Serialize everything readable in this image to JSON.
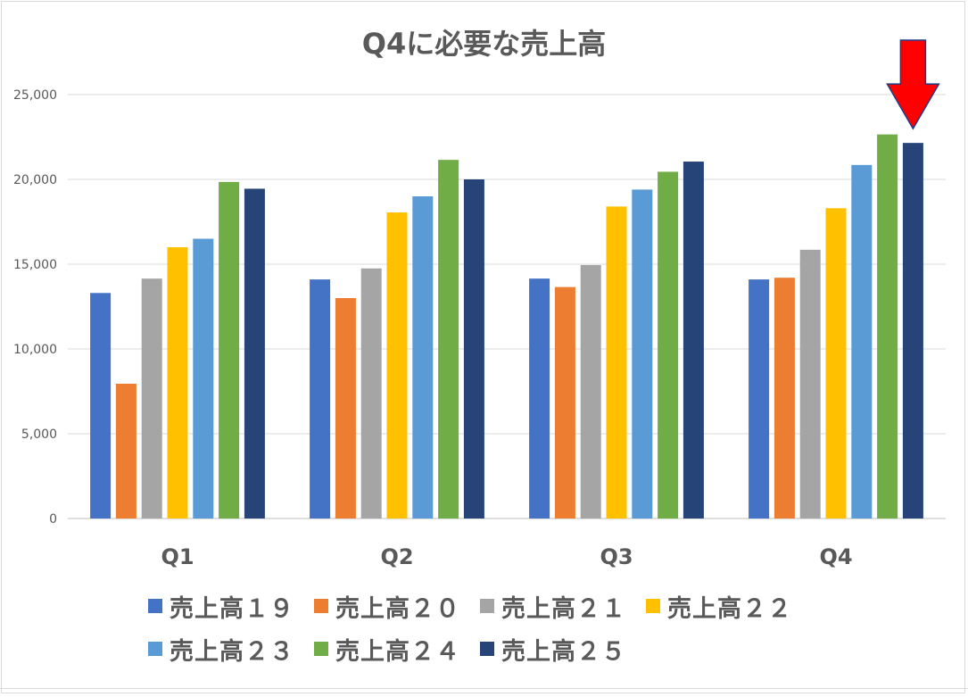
{
  "chart_data": {
    "type": "bar",
    "title": "Q4に必要な売上高",
    "categories": [
      "Q1",
      "Q2",
      "Q3",
      "Q4"
    ],
    "ylim": [
      0,
      25000
    ],
    "yticks": [
      "0",
      "5,000",
      "10,000",
      "15,000",
      "20,000",
      "25,000"
    ],
    "ytick_values": [
      0,
      5000,
      10000,
      15000,
      20000,
      25000
    ],
    "grid": true,
    "legend_position": "bottom",
    "series": [
      {
        "name": "売上高１９",
        "color": "#4472c4",
        "values": [
          13300,
          14100,
          14150,
          14100
        ]
      },
      {
        "name": "売上高２０",
        "color": "#ed7d31",
        "values": [
          7950,
          13000,
          13650,
          14200
        ]
      },
      {
        "name": "売上高２１",
        "color": "#a5a5a5",
        "values": [
          14150,
          14750,
          14950,
          15850
        ]
      },
      {
        "name": "売上高２２",
        "color": "#ffc000",
        "values": [
          16000,
          18050,
          18400,
          18300
        ]
      },
      {
        "name": "売上高２３",
        "color": "#5b9bd5",
        "values": [
          16500,
          19000,
          19400,
          20850
        ]
      },
      {
        "name": "売上高２４",
        "color": "#70ad47",
        "values": [
          19850,
          21150,
          20450,
          22650
        ]
      },
      {
        "name": "売上高２５",
        "color": "#264478",
        "values": [
          19450,
          20000,
          21050,
          22150
        ]
      }
    ],
    "annotations": [
      {
        "type": "arrow",
        "color": "#ff0000",
        "target_category": "Q4",
        "target_series": "売上高２５"
      }
    ]
  },
  "legend_labels": [
    "売上高１９",
    "売上高２０",
    "売上高２１",
    "売上高２２",
    "売上高２３",
    "売上高２４",
    "売上高２５"
  ]
}
